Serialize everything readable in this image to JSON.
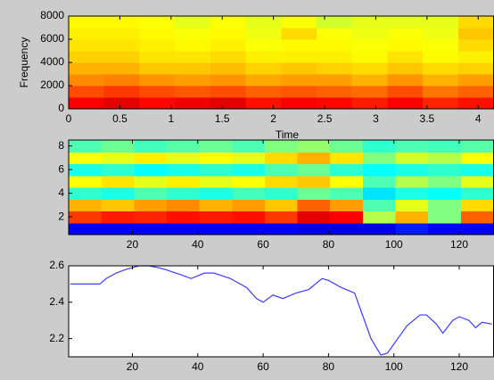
{
  "chart_data": [
    {
      "type": "heatmap",
      "colormap": "jet",
      "xlabel": "Time",
      "ylabel": "Frequency",
      "xlim": [
        0,
        4.15
      ],
      "ylim": [
        0,
        8000
      ],
      "xticks": [
        0,
        0.5,
        1,
        1.5,
        2,
        2.5,
        3,
        3.5,
        4
      ],
      "yticks": [
        0,
        2000,
        4000,
        6000,
        8000
      ],
      "z": [
        [
          0.88,
          0.9,
          0.87,
          0.89,
          0.9,
          0.86,
          0.88,
          0.87,
          0.85,
          0.88,
          0.84,
          0.86
        ],
        [
          0.8,
          0.82,
          0.8,
          0.79,
          0.8,
          0.78,
          0.79,
          0.78,
          0.77,
          0.8,
          0.76,
          0.78
        ],
        [
          0.74,
          0.75,
          0.73,
          0.72,
          0.73,
          0.71,
          0.72,
          0.72,
          0.7,
          0.73,
          0.7,
          0.72
        ],
        [
          0.7,
          0.7,
          0.68,
          0.68,
          0.69,
          0.67,
          0.68,
          0.67,
          0.66,
          0.68,
          0.66,
          0.67
        ],
        [
          0.67,
          0.67,
          0.65,
          0.65,
          0.66,
          0.64,
          0.64,
          0.64,
          0.63,
          0.65,
          0.63,
          0.64
        ],
        [
          0.65,
          0.65,
          0.64,
          0.63,
          0.64,
          0.62,
          0.63,
          0.63,
          0.62,
          0.63,
          0.62,
          0.66
        ],
        [
          0.64,
          0.64,
          0.63,
          0.62,
          0.63,
          0.61,
          0.66,
          0.62,
          0.61,
          0.62,
          0.61,
          0.68
        ],
        [
          0.63,
          0.63,
          0.62,
          0.6,
          0.62,
          0.6,
          0.62,
          0.58,
          0.6,
          0.6,
          0.6,
          0.66
        ]
      ]
    },
    {
      "type": "heatmap",
      "colormap": "jet",
      "xlim": [
        0.5,
        130.5
      ],
      "ylim": [
        0.5,
        8.5
      ],
      "xticks": [
        20,
        40,
        60,
        80,
        100,
        120
      ],
      "yticks": [
        2,
        4,
        6,
        8
      ],
      "z": [
        [
          0.12,
          0.12,
          0.12,
          0.12,
          0.12,
          0.12,
          0.12,
          0.1,
          0.1,
          0.1,
          0.15,
          0.12,
          0.12
        ],
        [
          0.82,
          0.85,
          0.84,
          0.86,
          0.85,
          0.86,
          0.82,
          0.9,
          0.88,
          0.55,
          0.7,
          0.5,
          0.78
        ],
        [
          0.7,
          0.68,
          0.72,
          0.74,
          0.7,
          0.72,
          0.68,
          0.78,
          0.72,
          0.45,
          0.6,
          0.5,
          0.66
        ],
        [
          0.42,
          0.4,
          0.45,
          0.42,
          0.4,
          0.44,
          0.42,
          0.48,
          0.45,
          0.35,
          0.4,
          0.38,
          0.42
        ],
        [
          0.62,
          0.65,
          0.6,
          0.64,
          0.6,
          0.62,
          0.66,
          0.68,
          0.62,
          0.45,
          0.55,
          0.5,
          0.6
        ],
        [
          0.4,
          0.42,
          0.38,
          0.4,
          0.42,
          0.4,
          0.45,
          0.48,
          0.42,
          0.38,
          0.4,
          0.42,
          0.4
        ],
        [
          0.62,
          0.6,
          0.64,
          0.6,
          0.62,
          0.6,
          0.66,
          0.7,
          0.65,
          0.5,
          0.58,
          0.55,
          0.62
        ],
        [
          0.45,
          0.48,
          0.44,
          0.46,
          0.48,
          0.45,
          0.5,
          0.52,
          0.48,
          0.42,
          0.45,
          0.44,
          0.46
        ]
      ]
    },
    {
      "type": "line",
      "color": "#3c3cff",
      "xlim": [
        0.5,
        130.5
      ],
      "ylim": [
        2.1,
        2.6
      ],
      "xticks": [
        20,
        40,
        60,
        80,
        100,
        120
      ],
      "yticks": [
        2.2,
        2.4,
        2.6
      ],
      "x": [
        1,
        5,
        10,
        12,
        15,
        18,
        20,
        22,
        25,
        28,
        30,
        35,
        38,
        42,
        45,
        50,
        55,
        58,
        60,
        63,
        66,
        70,
        74,
        78,
        80,
        84,
        88,
        90,
        93,
        96,
        98,
        100,
        104,
        108,
        110,
        113,
        115,
        118,
        120,
        123,
        125,
        127,
        130
      ],
      "values": [
        2.5,
        2.5,
        2.5,
        2.53,
        2.56,
        2.58,
        2.59,
        2.6,
        2.6,
        2.59,
        2.58,
        2.55,
        2.53,
        2.56,
        2.56,
        2.53,
        2.48,
        2.42,
        2.4,
        2.44,
        2.42,
        2.45,
        2.47,
        2.53,
        2.52,
        2.48,
        2.45,
        2.35,
        2.2,
        2.11,
        2.12,
        2.17,
        2.27,
        2.33,
        2.33,
        2.28,
        2.23,
        2.3,
        2.32,
        2.3,
        2.26,
        2.29,
        2.28
      ]
    }
  ]
}
